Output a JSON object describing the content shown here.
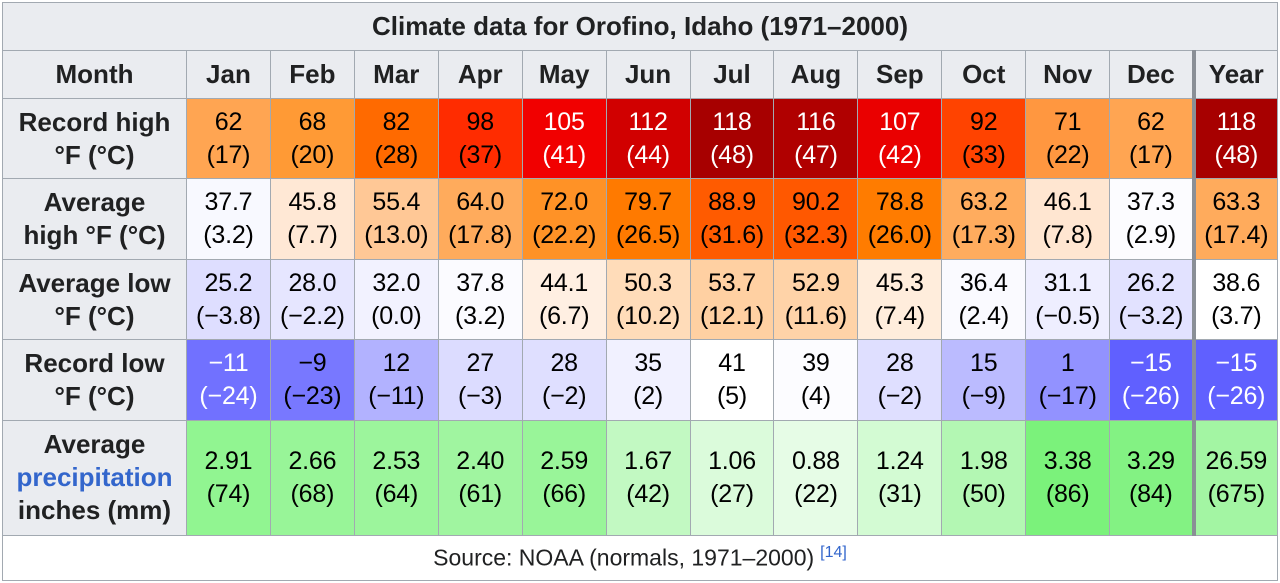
{
  "title": "Climate data for Orofino, Idaho (1971–2000)",
  "header_label": "Month",
  "months": [
    "Jan",
    "Feb",
    "Mar",
    "Apr",
    "May",
    "Jun",
    "Jul",
    "Aug",
    "Sep",
    "Oct",
    "Nov",
    "Dec",
    "Year"
  ],
  "source": {
    "text": "Source: NOAA (normals, 1971–2000)",
    "ref": "[14]"
  },
  "chart_data": {
    "type": "table",
    "title": "Climate data for Orofino, Idaho (1971–2000)",
    "columns": [
      "Jan",
      "Feb",
      "Mar",
      "Apr",
      "May",
      "Jun",
      "Jul",
      "Aug",
      "Sep",
      "Oct",
      "Nov",
      "Dec",
      "Year"
    ],
    "rows": [
      {
        "key": "record_high",
        "label_lines": [
          "Record high",
          "°F (°C)"
        ],
        "kind": "temp",
        "primary": [
          "62",
          "68",
          "82",
          "98",
          "105",
          "112",
          "118",
          "116",
          "107",
          "92",
          "71",
          "62",
          "118"
        ],
        "secondary": [
          "(17)",
          "(20)",
          "(28)",
          "(37)",
          "(41)",
          "(44)",
          "(48)",
          "(47)",
          "(42)",
          "(33)",
          "(22)",
          "(17)",
          "(48)"
        ],
        "colors": [
          "#FFA552",
          "#FF9A35",
          "#FF6A00",
          "#FF2C00",
          "#F10000",
          "#D10000",
          "#A70000",
          "#B00000",
          "#EA0000",
          "#FF4300",
          "#FF9740",
          "#FFA552",
          "#A70000"
        ],
        "text_colors": [
          "#000000",
          "#000000",
          "#000000",
          "#000000",
          "#FFFFFF",
          "#FFFFFF",
          "#FFFFFF",
          "#FFFFFF",
          "#FFFFFF",
          "#000000",
          "#000000",
          "#000000",
          "#FFFFFF"
        ]
      },
      {
        "key": "avg_high",
        "label_lines": [
          "Average",
          "high °F (°C)"
        ],
        "kind": "temp",
        "primary": [
          "37.7",
          "45.8",
          "55.4",
          "64.0",
          "72.0",
          "79.7",
          "88.9",
          "90.2",
          "78.8",
          "63.2",
          "46.1",
          "37.3",
          "63.3"
        ],
        "secondary": [
          "(3.2)",
          "(7.7)",
          "(13.0)",
          "(17.8)",
          "(22.2)",
          "(26.5)",
          "(31.6)",
          "(32.3)",
          "(26.0)",
          "(17.3)",
          "(7.8)",
          "(2.9)",
          "(17.4)"
        ],
        "colors": [
          "#F8F9FF",
          "#FFE8D5",
          "#FFC896",
          "#FFAB5C",
          "#FF9226",
          "#FF7A00",
          "#FF5B00",
          "#FF5800",
          "#FF7C00",
          "#FFAC5E",
          "#FFE6D1",
          "#FCFCFF",
          "#FFAB5C"
        ],
        "text_colors": [
          "#000000",
          "#000000",
          "#000000",
          "#000000",
          "#000000",
          "#000000",
          "#000000",
          "#000000",
          "#000000",
          "#000000",
          "#000000",
          "#000000",
          "#000000"
        ]
      },
      {
        "key": "avg_low",
        "label_lines": [
          "Average low",
          "°F (°C)"
        ],
        "kind": "temp",
        "primary": [
          "25.2",
          "28.0",
          "32.0",
          "37.8",
          "44.1",
          "50.3",
          "53.7",
          "52.9",
          "45.3",
          "36.4",
          "31.1",
          "26.2",
          "38.6"
        ],
        "secondary": [
          "(−3.8)",
          "(−2.2)",
          "(0.0)",
          "(3.2)",
          "(6.7)",
          "(10.2)",
          "(12.1)",
          "(11.6)",
          "(7.4)",
          "(2.4)",
          "(−0.5)",
          "(−3.2)",
          "(3.7)"
        ],
        "colors": [
          "#DEDEFF",
          "#E6E6FF",
          "#F2F2FF",
          "#FBFBFF",
          "#FFEFE2",
          "#FFDCB9",
          "#FFD0A2",
          "#FFD3A8",
          "#FFEDDC",
          "#FAFAFF",
          "#EEEEFF",
          "#E2E2FF",
          "#FFFFFF"
        ],
        "text_colors": [
          "#000000",
          "#000000",
          "#000000",
          "#000000",
          "#000000",
          "#000000",
          "#000000",
          "#000000",
          "#000000",
          "#000000",
          "#000000",
          "#000000",
          "#000000"
        ]
      },
      {
        "key": "record_low",
        "label_lines": [
          "Record low",
          "°F (°C)"
        ],
        "kind": "temp",
        "primary": [
          "−11",
          "−9",
          "12",
          "27",
          "28",
          "35",
          "41",
          "39",
          "28",
          "15",
          "1",
          "−15",
          "−15"
        ],
        "secondary": [
          "(−24)",
          "(−23)",
          "(−11)",
          "(−3)",
          "(−2)",
          "(2)",
          "(5)",
          "(4)",
          "(−2)",
          "(−9)",
          "(−17)",
          "(−26)",
          "(−26)"
        ],
        "colors": [
          "#7171FF",
          "#7878FF",
          "#B2B2FF",
          "#DCDCFF",
          "#DFDFFF",
          "#F1F1FF",
          "#FFFFFF",
          "#FCFCFF",
          "#DFDFFF",
          "#BBBBFF",
          "#9292FF",
          "#6060FF",
          "#6060FF"
        ],
        "text_colors": [
          "#FFFFFF",
          "#000000",
          "#000000",
          "#000000",
          "#000000",
          "#000000",
          "#000000",
          "#000000",
          "#000000",
          "#000000",
          "#000000",
          "#FFFFFF",
          "#FFFFFF"
        ]
      },
      {
        "key": "precip",
        "label_lines": [
          "Average",
          "precipitation",
          "inches (mm)"
        ],
        "label_link_line": 1,
        "kind": "precip",
        "primary": [
          "2.91",
          "2.66",
          "2.53",
          "2.40",
          "2.59",
          "1.67",
          "1.06",
          "0.88",
          "1.24",
          "1.98",
          "3.38",
          "3.29",
          "26.59"
        ],
        "secondary": [
          "(74)",
          "(68)",
          "(64)",
          "(61)",
          "(66)",
          "(42)",
          "(27)",
          "(22)",
          "(31)",
          "(50)",
          "(86)",
          "(84)",
          "(675)"
        ],
        "colors": [
          "#91F591",
          "#98F598",
          "#9CF59C",
          "#A0F5A0",
          "#99F599",
          "#C2F9C2",
          "#DBFBDB",
          "#E6FCE6",
          "#D3FBD3",
          "#B3F7B3",
          "#7BF27B",
          "#83F283",
          "#A3F5A3"
        ],
        "text_colors": [
          "#000000",
          "#000000",
          "#000000",
          "#000000",
          "#000000",
          "#000000",
          "#000000",
          "#000000",
          "#000000",
          "#000000",
          "#000000",
          "#000000",
          "#000000"
        ]
      }
    ]
  }
}
